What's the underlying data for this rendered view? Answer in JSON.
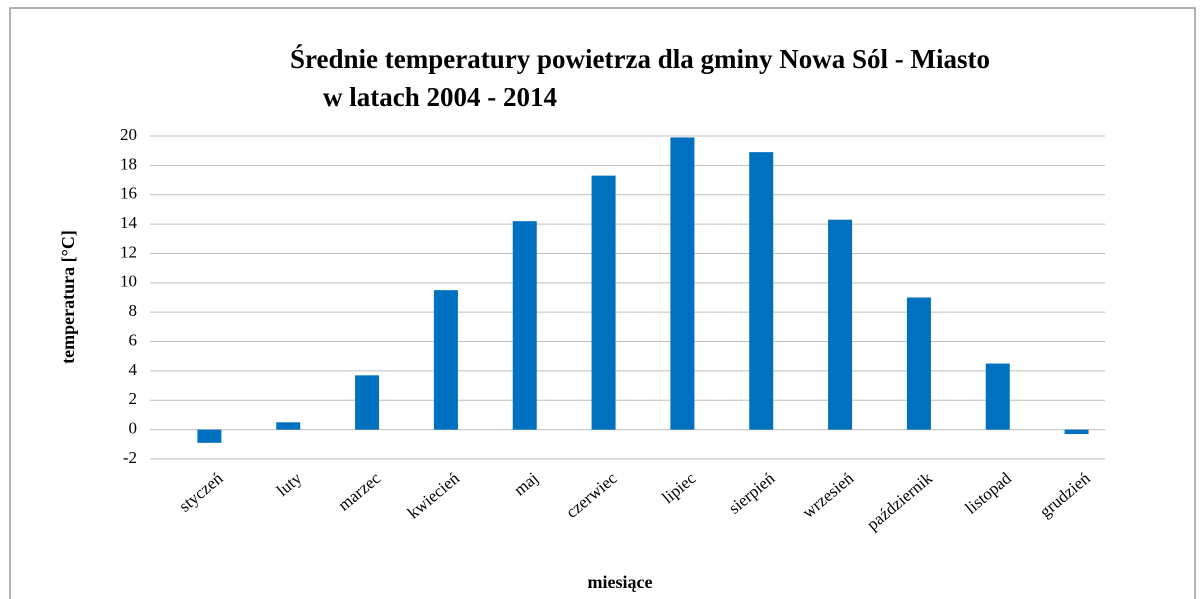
{
  "chart_data": {
    "type": "bar",
    "title": [
      "Średnie temperatury powietrza dla gminy Nowa Sól - Miasto",
      "w latach 2004 - 2014"
    ],
    "xlabel": "miesiące",
    "ylabel": "temperatura [°C]",
    "categories": [
      "styczeń",
      "luty",
      "marzec",
      "kwiecień",
      "maj",
      "czerwiec",
      "lipiec",
      "sierpień",
      "wrzesień",
      "październik",
      "listopad",
      "grudzień"
    ],
    "values": [
      -0.9,
      0.5,
      3.7,
      9.5,
      14.2,
      17.3,
      19.9,
      18.9,
      14.3,
      9.0,
      4.5,
      -0.3
    ],
    "color": "#0070c0",
    "ylim": [
      -2,
      20
    ],
    "yticks": [
      -2,
      0,
      2,
      4,
      6,
      8,
      10,
      12,
      14,
      16,
      18,
      20
    ],
    "grid": true
  }
}
